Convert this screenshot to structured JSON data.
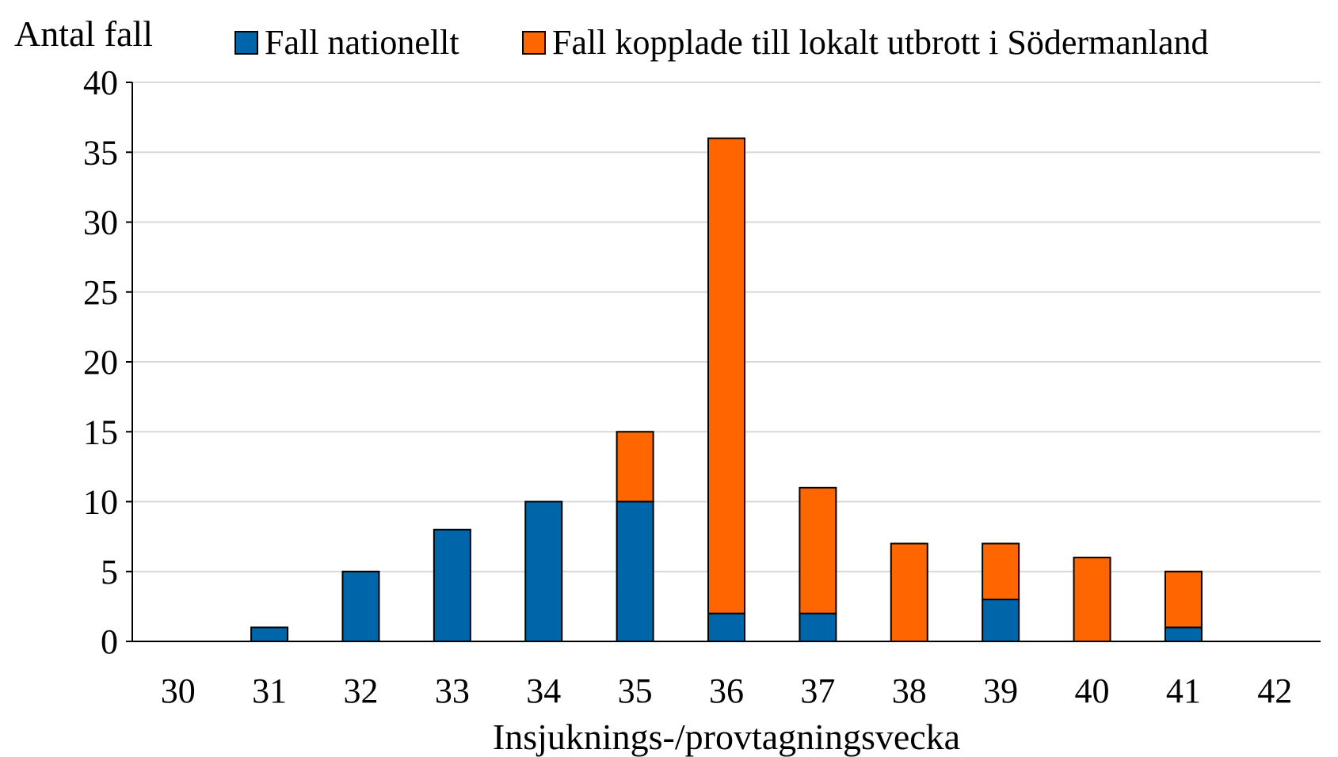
{
  "chart_data": {
    "type": "bar",
    "stacked": true,
    "title": "",
    "xlabel": "Insjuknings-/provtagningsvecka",
    "ylabel": "Antal fall",
    "ylim": [
      0,
      40
    ],
    "yticks": [
      0,
      5,
      10,
      15,
      20,
      25,
      30,
      35,
      40
    ],
    "grid": true,
    "legend_position": "top",
    "categories": [
      "30",
      "31",
      "32",
      "33",
      "34",
      "35",
      "36",
      "37",
      "38",
      "39",
      "40",
      "41",
      "42"
    ],
    "series": [
      {
        "name": "Fall nationellt",
        "color": "#0066AA",
        "values": [
          0,
          1,
          5,
          8,
          10,
          10,
          2,
          2,
          0,
          3,
          0,
          1,
          0
        ]
      },
      {
        "name": "Fall kopplade till lokalt utbrott i Södermanland",
        "color": "#FF6600",
        "values": [
          0,
          0,
          0,
          0,
          0,
          5,
          34,
          9,
          7,
          4,
          6,
          4,
          0
        ]
      }
    ]
  }
}
